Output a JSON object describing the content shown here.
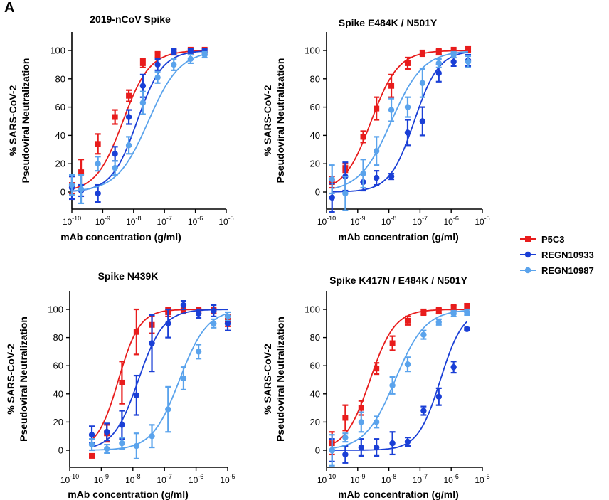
{
  "figure": {
    "panel_label": "A",
    "legend": [
      {
        "name": "P5C3",
        "color": "#e81c1c",
        "marker": "square"
      },
      {
        "name": "REGN10933",
        "color": "#1a3fd6",
        "marker": "circle"
      },
      {
        "name": "REGN10987",
        "color": "#5aa3ec",
        "marker": "circle"
      }
    ]
  },
  "chart_data": [
    {
      "type": "scatter",
      "title": "2019-nCoV Spike",
      "xlabel": "mAb concentration (g/ml)",
      "ylabel_line1": "% SARS-CoV-2",
      "ylabel_line2": "Pseudoviral Neutralization",
      "xscale": "log",
      "xlim": [
        1e-10,
        1e-05
      ],
      "ylim": [
        -10,
        108
      ],
      "xticks": [
        "10-10",
        "10-9",
        "10-8",
        "10-7",
        "10-6",
        "10-5"
      ],
      "yticks": [
        0,
        20,
        40,
        60,
        80,
        100
      ],
      "series": [
        {
          "name": "P5C3",
          "color": "#e81c1c",
          "marker": "square",
          "ic50": 4.5e-09,
          "hill": 1.0,
          "points": [
            [
              1e-10,
              5,
              6
            ],
            [
              2e-10,
              14,
              9
            ],
            [
              7e-10,
              34,
              7
            ],
            [
              2.5e-09,
              53,
              5
            ],
            [
              7e-09,
              68,
              4
            ],
            [
              2e-08,
              91,
              3
            ],
            [
              6e-08,
              97,
              2
            ],
            [
              2e-07,
              99,
              2
            ],
            [
              7e-07,
              100,
              2
            ],
            [
              2e-06,
              100,
              2
            ]
          ]
        },
        {
          "name": "REGN10933",
          "color": "#1a3fd6",
          "marker": "circle",
          "ic50": 1.3e-08,
          "hill": 1.05,
          "points": [
            [
              1e-10,
              3,
              8
            ],
            [
              2e-10,
              1,
              4
            ],
            [
              7e-10,
              -1,
              6
            ],
            [
              2.5e-09,
              27,
              5
            ],
            [
              7e-09,
              53,
              5
            ],
            [
              2e-08,
              75,
              8
            ],
            [
              6e-08,
              90,
              4
            ],
            [
              2e-07,
              99,
              2
            ],
            [
              7e-07,
              99,
              2
            ],
            [
              2e-06,
              99,
              2
            ]
          ]
        },
        {
          "name": "REGN10987",
          "color": "#5aa3ec",
          "marker": "circle",
          "ic50": 3e-08,
          "hill": 0.85,
          "points": [
            [
              1e-10,
              5,
              7
            ],
            [
              2e-10,
              2,
              10
            ],
            [
              7e-10,
              20,
              5
            ],
            [
              2.5e-09,
              17,
              5
            ],
            [
              7e-09,
              33,
              6
            ],
            [
              2e-08,
              63,
              8
            ],
            [
              6e-08,
              81,
              4
            ],
            [
              2e-07,
              90,
              4
            ],
            [
              7e-07,
              94,
              3
            ],
            [
              2e-06,
              97,
              2
            ]
          ]
        }
      ]
    },
    {
      "type": "scatter",
      "title": "Spike E484K / N501Y",
      "xlabel": "mAb concentration (g/ml)",
      "ylabel_line1": "% SARS-CoV-2",
      "ylabel_line2": "Pseudoviral Neutralization",
      "xscale": "log",
      "xlim": [
        1e-10,
        1e-05
      ],
      "ylim": [
        -10,
        108
      ],
      "xticks": [
        "10-10",
        "10-9",
        "10-8",
        "10-7",
        "10-6",
        "10-5"
      ],
      "yticks": [
        0,
        20,
        40,
        60,
        80,
        100
      ],
      "series": [
        {
          "name": "P5C3",
          "color": "#e81c1c",
          "marker": "square",
          "ic50": 2.7e-09,
          "hill": 1.0,
          "points": [
            [
              1.5e-10,
              7,
              4
            ],
            [
              4e-10,
              17,
              3
            ],
            [
              1.5e-09,
              39,
              4
            ],
            [
              4e-09,
              59,
              8
            ],
            [
              1.2e-08,
              75,
              8
            ],
            [
              4e-08,
              91,
              4
            ],
            [
              1.2e-07,
              98,
              2
            ],
            [
              4e-07,
              99,
              2
            ],
            [
              1.2e-06,
              100,
              2
            ],
            [
              3.5e-06,
              101,
              2
            ]
          ]
        },
        {
          "name": "REGN10933",
          "color": "#1a3fd6",
          "marker": "circle",
          "ic50": 6.5e-08,
          "hill": 1.1,
          "points": [
            [
              1.5e-10,
              -4,
              10
            ],
            [
              4e-10,
              11,
              10
            ],
            [
              1.5e-09,
              7,
              6
            ],
            [
              4e-09,
              10,
              5
            ],
            [
              1.2e-08,
              11,
              2
            ],
            [
              4e-08,
              42,
              9
            ],
            [
              1.2e-07,
              50,
              10
            ],
            [
              4e-07,
              84,
              6
            ],
            [
              1.2e-06,
              92,
              3
            ],
            [
              3.5e-06,
              93,
              4
            ]
          ]
        },
        {
          "name": "REGN10987",
          "color": "#5aa3ec",
          "marker": "circle",
          "ic50": 1.2e-08,
          "hill": 0.85,
          "points": [
            [
              1.5e-10,
              9,
              10
            ],
            [
              4e-10,
              -1,
              12
            ],
            [
              1.5e-09,
              13,
              10
            ],
            [
              4e-09,
              29,
              10
            ],
            [
              1.2e-08,
              58,
              8
            ],
            [
              4e-08,
              60,
              7
            ],
            [
              1.2e-07,
              77,
              10
            ],
            [
              4e-07,
              91,
              3
            ],
            [
              1.2e-06,
              97,
              2
            ],
            [
              3.5e-06,
              92,
              4
            ]
          ]
        }
      ]
    },
    {
      "type": "scatter",
      "title": "Spike N439K",
      "xlabel": "mAb concentration (g/ml)",
      "ylabel_line1": "% SARS-CoV-2",
      "ylabel_line2": "Pseudoviral Neutralization",
      "xscale": "log",
      "xlim": [
        1e-10,
        1e-05
      ],
      "ylim": [
        -10,
        108
      ],
      "xticks": [
        "10-10",
        "10-9",
        "10-8",
        "10-7",
        "10-6",
        "10-5"
      ],
      "yticks": [
        0,
        20,
        40,
        60,
        80,
        100
      ],
      "series": [
        {
          "name": "P5C3",
          "color": "#e81c1c",
          "marker": "square",
          "ic50": 3.5e-09,
          "hill": 1.3,
          "points": [
            [
              5e-10,
              -4,
              1
            ],
            [
              1.5e-09,
              12,
              6
            ],
            [
              4.5e-09,
              48,
              15
            ],
            [
              1.3e-08,
              84,
              16
            ],
            [
              4e-08,
              89,
              6
            ],
            [
              1.3e-07,
              98,
              3
            ],
            [
              4e-07,
              99,
              2
            ],
            [
              1.2e-06,
              99,
              2
            ],
            [
              3.6e-06,
              99,
              2
            ],
            [
              1e-05,
              92,
              4
            ]
          ]
        },
        {
          "name": "REGN10933",
          "color": "#1a3fd6",
          "marker": "circle",
          "ic50": 1.5e-08,
          "hill": 1.1,
          "points": [
            [
              5e-10,
              11,
              6
            ],
            [
              1.5e-09,
              13,
              6
            ],
            [
              4.5e-09,
              18,
              10
            ],
            [
              1.3e-08,
              39,
              14
            ],
            [
              4e-08,
              76,
              20
            ],
            [
              1.3e-07,
              90,
              10
            ],
            [
              4e-07,
              103,
              3
            ],
            [
              1.2e-06,
              97,
              3
            ],
            [
              3.6e-06,
              99,
              4
            ],
            [
              1e-05,
              90,
              5
            ]
          ]
        },
        {
          "name": "REGN10987",
          "color": "#5aa3ec",
          "marker": "circle",
          "ic50": 3e-07,
          "hill": 1.0,
          "points": [
            [
              5e-10,
              4,
              4
            ],
            [
              1.5e-09,
              1,
              3
            ],
            [
              4.5e-09,
              5,
              4
            ],
            [
              1.3e-08,
              3,
              9
            ],
            [
              4e-08,
              10,
              8
            ],
            [
              1.3e-07,
              29,
              16
            ],
            [
              4e-07,
              51,
              8
            ],
            [
              1.2e-06,
              70,
              5
            ],
            [
              3.6e-06,
              90,
              3
            ],
            [
              1e-05,
              95,
              3
            ]
          ]
        }
      ]
    },
    {
      "type": "scatter",
      "title": "Spike K417N / E484K / N501Y",
      "xlabel": "mAb concentration (g/ml)",
      "ylabel_line1": "% SARS-CoV-2",
      "ylabel_line2": "Pseudoviral Neutralization",
      "xscale": "log",
      "xlim": [
        1e-10,
        1e-05
      ],
      "ylim": [
        -10,
        108
      ],
      "xticks": [
        "10-10",
        "10-9",
        "10-8",
        "10-7",
        "10-6",
        "10-5"
      ],
      "yticks": [
        0,
        20,
        40,
        60,
        80,
        100
      ],
      "series": [
        {
          "name": "P5C3",
          "color": "#e81c1c",
          "marker": "square",
          "ic50": 2.5e-09,
          "hill": 1.1,
          "points": [
            [
              1.5e-10,
              5,
              8
            ],
            [
              4e-10,
              23,
              9
            ],
            [
              1.3e-09,
              30,
              5
            ],
            [
              4e-09,
              58,
              4
            ],
            [
              1.3e-08,
              76,
              5
            ],
            [
              4e-08,
              92,
              3
            ],
            [
              1.3e-07,
              98,
              2
            ],
            [
              4e-07,
              99,
              2
            ],
            [
              1.2e-06,
              101,
              2
            ],
            [
              3.2e-06,
              102,
              2
            ]
          ]
        },
        {
          "name": "REGN10933",
          "color": "#1a3fd6",
          "marker": "circle",
          "ic50": 4.5e-07,
          "hill": 1.2,
          "points": [
            [
              1.5e-10,
              0,
              8
            ],
            [
              4e-10,
              -3,
              6
            ],
            [
              1.3e-09,
              2,
              6
            ],
            [
              4e-09,
              2,
              6
            ],
            [
              1.3e-08,
              5,
              8
            ],
            [
              4e-08,
              6,
              3
            ],
            [
              1.3e-07,
              28,
              3
            ],
            [
              4e-07,
              38,
              6
            ],
            [
              1.2e-06,
              59,
              4
            ],
            [
              3.2e-06,
              86,
              1
            ]
          ]
        },
        {
          "name": "REGN10987",
          "color": "#5aa3ec",
          "marker": "circle",
          "ic50": 1.6e-08,
          "hill": 0.9,
          "points": [
            [
              1.5e-10,
              0,
              11
            ],
            [
              4e-10,
              9,
              3
            ],
            [
              1.3e-09,
              20,
              7
            ],
            [
              4e-09,
              20,
              4
            ],
            [
              1.3e-08,
              46,
              6
            ],
            [
              4e-08,
              61,
              5
            ],
            [
              1.3e-07,
              82,
              3
            ],
            [
              4e-07,
              91,
              2
            ],
            [
              1.2e-06,
              97,
              2
            ],
            [
              3.2e-06,
              98,
              2
            ]
          ]
        }
      ]
    }
  ]
}
